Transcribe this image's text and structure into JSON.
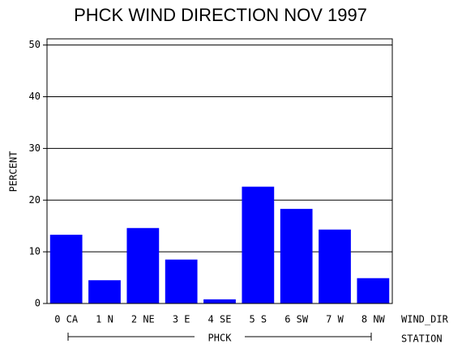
{
  "chart_data": {
    "type": "bar",
    "title": "PHCK WIND DIRECTION NOV 1997",
    "y_label": "PERCENT",
    "x_label": "WIND_DIR",
    "group_label": "PHCK",
    "group_axis_label": "STATION",
    "categories": [
      "0 CA",
      "1 N",
      "2 NE",
      "3 E",
      "4 SE",
      "5 S",
      "6 SW",
      "7 W",
      "8 NW"
    ],
    "values": [
      13.3,
      4.5,
      14.6,
      8.5,
      0.8,
      22.6,
      18.3,
      14.3,
      4.9
    ],
    "color": "#0000ff",
    "ylim": [
      0,
      51.2
    ],
    "yticks": [
      0,
      10,
      20,
      30,
      40,
      50
    ],
    "grid": true
  }
}
